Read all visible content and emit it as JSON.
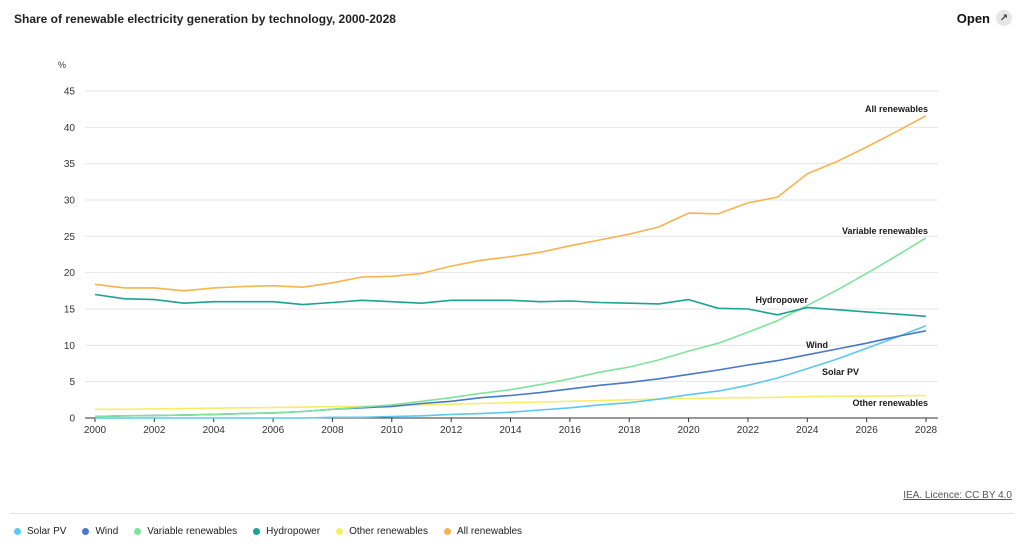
{
  "header": {
    "title": "Share of renewable electricity generation by technology, 2000-2028",
    "open_label": "Open",
    "open_icon": "external-link-icon"
  },
  "footer": {
    "licence": "IEA. Licence: CC BY 4.0"
  },
  "chart_data": {
    "type": "line",
    "title": "Share of renewable electricity generation by technology, 2000-2028",
    "ylabel": "%",
    "xlabel": "",
    "ylim": [
      0,
      45
    ],
    "yticks": [
      0,
      5,
      10,
      15,
      20,
      25,
      30,
      35,
      40,
      45
    ],
    "xticks": [
      2000,
      2002,
      2004,
      2006,
      2008,
      2010,
      2012,
      2014,
      2016,
      2018,
      2020,
      2022,
      2024,
      2026,
      2028
    ],
    "grid": true,
    "legend": "bottom",
    "x": [
      2000,
      2001,
      2002,
      2003,
      2004,
      2005,
      2006,
      2007,
      2008,
      2009,
      2010,
      2011,
      2012,
      2013,
      2014,
      2015,
      2016,
      2017,
      2018,
      2019,
      2020,
      2021,
      2022,
      2023,
      2024,
      2025,
      2026,
      2027,
      2028
    ],
    "series": [
      {
        "name": "Solar PV",
        "color": "#5bc8ef",
        "values": [
          0.0,
          0.0,
          0.0,
          0.0,
          0.0,
          0.0,
          0.0,
          0.0,
          0.1,
          0.1,
          0.2,
          0.3,
          0.5,
          0.6,
          0.8,
          1.1,
          1.4,
          1.8,
          2.1,
          2.6,
          3.2,
          3.7,
          4.5,
          5.5,
          6.8,
          8.1,
          9.6,
          11.1,
          12.7
        ]
      },
      {
        "name": "Wind",
        "color": "#4a78c8",
        "values": [
          0.2,
          0.3,
          0.35,
          0.4,
          0.5,
          0.6,
          0.7,
          0.9,
          1.2,
          1.4,
          1.6,
          2.0,
          2.3,
          2.8,
          3.1,
          3.5,
          4.0,
          4.5,
          4.9,
          5.4,
          6.0,
          6.6,
          7.3,
          7.9,
          8.7,
          9.5,
          10.3,
          11.2,
          12.0
        ]
      },
      {
        "name": "Variable renewables",
        "color": "#7fe39c",
        "values": [
          0.2,
          0.3,
          0.35,
          0.4,
          0.5,
          0.6,
          0.7,
          0.9,
          1.2,
          1.5,
          1.8,
          2.3,
          2.8,
          3.4,
          3.9,
          4.6,
          5.4,
          6.3,
          7.0,
          8.0,
          9.2,
          10.3,
          11.8,
          13.4,
          15.5,
          17.6,
          19.9,
          22.3,
          24.8
        ]
      },
      {
        "name": "Hydropower",
        "color": "#1aa391",
        "values": [
          17.0,
          16.4,
          16.3,
          15.8,
          16.0,
          16.0,
          16.0,
          15.6,
          15.9,
          16.2,
          16.0,
          15.8,
          16.2,
          16.2,
          16.2,
          16.0,
          16.1,
          15.9,
          15.8,
          15.7,
          16.3,
          15.1,
          15.0,
          14.2,
          15.2,
          14.9,
          14.6,
          14.3,
          14.0
        ]
      },
      {
        "name": "Other renewables",
        "color": "#f7ed67",
        "values": [
          1.2,
          1.2,
          1.25,
          1.3,
          1.35,
          1.4,
          1.45,
          1.5,
          1.55,
          1.6,
          1.7,
          1.8,
          1.9,
          2.0,
          2.1,
          2.2,
          2.3,
          2.4,
          2.5,
          2.6,
          2.7,
          2.75,
          2.8,
          2.85,
          2.95,
          3.0,
          3.0,
          3.05,
          3.1
        ]
      },
      {
        "name": "All renewables",
        "color": "#f5b44f",
        "values": [
          18.4,
          17.9,
          17.9,
          17.5,
          17.9,
          18.1,
          18.2,
          18.0,
          18.6,
          19.4,
          19.5,
          19.9,
          20.9,
          21.7,
          22.2,
          22.8,
          23.7,
          24.5,
          25.3,
          26.3,
          28.2,
          28.1,
          29.6,
          30.4,
          33.6,
          35.3,
          37.3,
          39.4,
          41.6
        ]
      }
    ]
  }
}
